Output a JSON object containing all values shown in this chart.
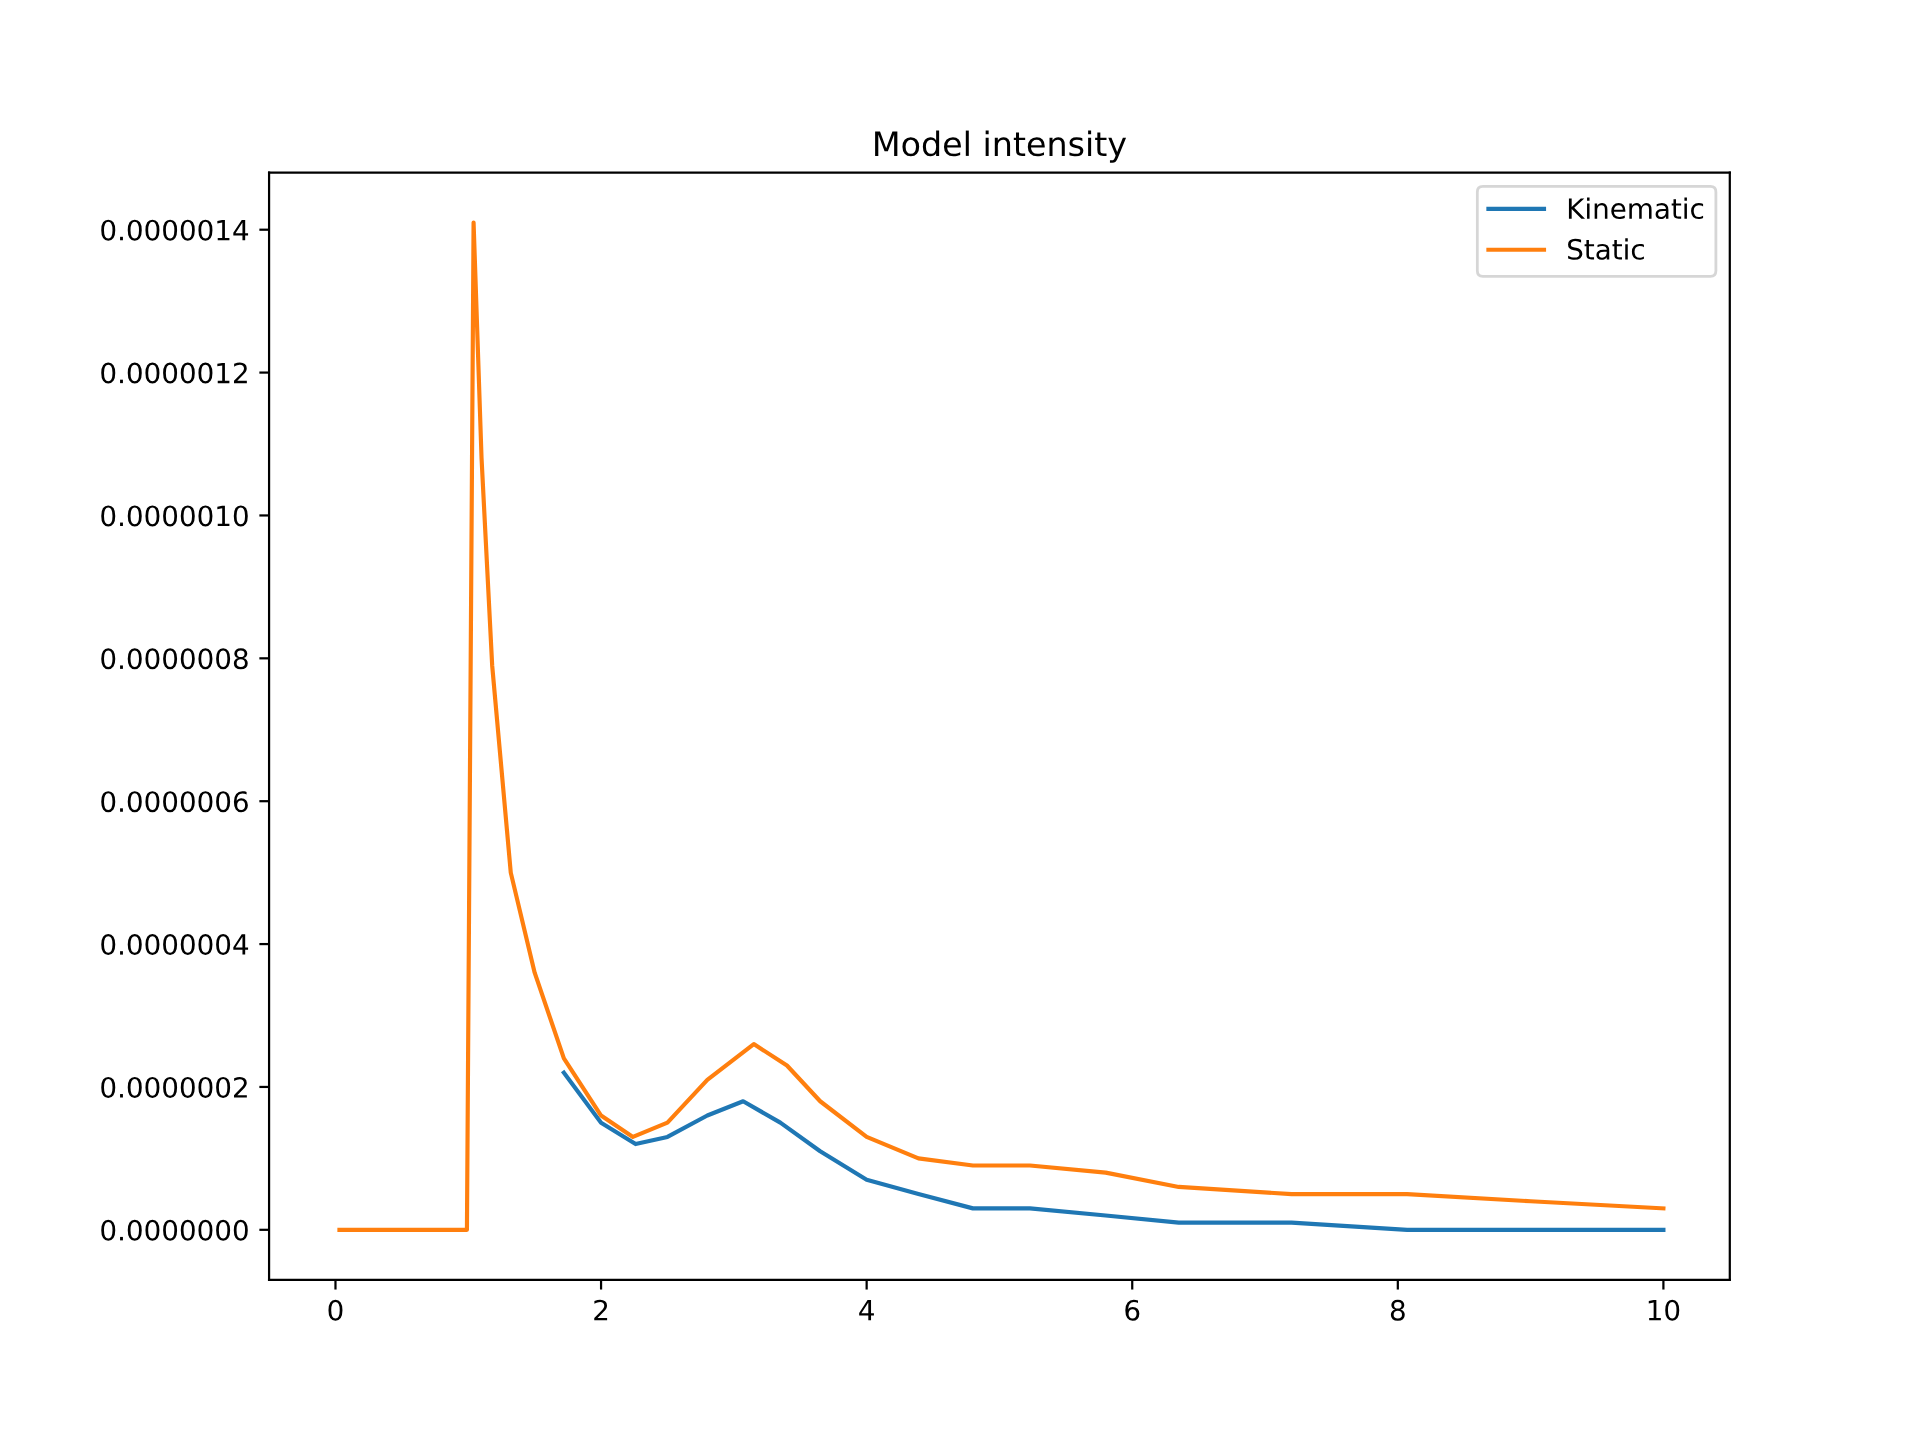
{
  "chart_data": {
    "type": "line",
    "title": "Model intensity",
    "x": [
      0.03,
      0.99,
      1.04,
      1.1,
      1.18,
      1.32,
      1.5,
      1.72,
      2.0,
      2.24,
      2.5,
      2.8,
      3.15,
      3.4,
      3.65,
      4.0,
      4.39,
      4.8,
      5.23,
      5.8,
      6.35,
      7.2,
      8.07,
      9.0,
      10.0
    ],
    "series": [
      {
        "name": "Kinematic",
        "color": "#1f77b4",
        "x": [
          1.72,
          2.0,
          2.26,
          2.5,
          2.8,
          3.07,
          3.35,
          3.65,
          4.0,
          4.39,
          4.8,
          5.23,
          5.8,
          6.35,
          7.2,
          8.07,
          9.0,
          10.0
        ],
        "values": [
          2.2e-07,
          1.5e-07,
          1.2e-07,
          1.3e-07,
          1.6e-07,
          1.8e-07,
          1.5e-07,
          1.1e-07,
          7e-08,
          5e-08,
          3e-08,
          3e-08,
          2e-08,
          1e-08,
          1e-08,
          0,
          0,
          0
        ]
      },
      {
        "name": "Static",
        "color": "#ff7f0e",
        "values": [
          0,
          0,
          1.41e-06,
          1.08e-06,
          7.9e-07,
          5e-07,
          3.6e-07,
          2.4e-07,
          1.6e-07,
          1.3e-07,
          1.5e-07,
          2.1e-07,
          2.6e-07,
          2.3e-07,
          1.8e-07,
          1.3e-07,
          1e-07,
          9e-08,
          9e-08,
          8e-08,
          6e-08,
          5e-08,
          5e-08,
          4e-08,
          3e-08
        ]
      }
    ],
    "xlim": [
      -0.5,
      10.5
    ],
    "xticks": [
      0,
      2,
      4,
      6,
      8,
      10
    ],
    "ylim": [
      -7e-08,
      1.48e-06
    ],
    "yticks": [
      {
        "value": 0,
        "label": "0.0000000"
      },
      {
        "value": 2e-07,
        "label": "0.0000002"
      },
      {
        "value": 4e-07,
        "label": "0.0000004"
      },
      {
        "value": 6e-07,
        "label": "0.0000006"
      },
      {
        "value": 8e-07,
        "label": "0.0000008"
      },
      {
        "value": 1e-06,
        "label": "0.0000010"
      },
      {
        "value": 1.2e-06,
        "label": "0.0000012"
      },
      {
        "value": 1.4e-06,
        "label": "0.0000014"
      }
    ],
    "legend": "top right",
    "grid": false
  }
}
